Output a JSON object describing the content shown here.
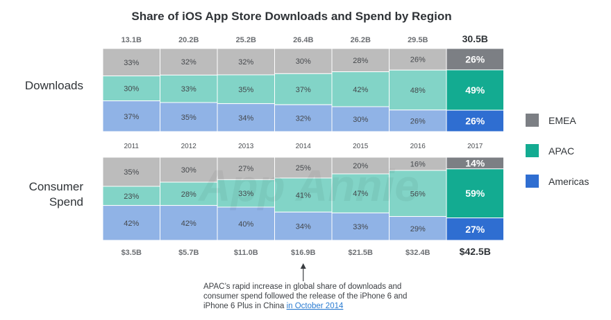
{
  "chart_data": {
    "type": "bar",
    "stacked": true,
    "normalized": true,
    "title": "Share of iOS App Store Downloads and Spend by Region",
    "categories": [
      "2011",
      "2012",
      "2013",
      "2014",
      "2015",
      "2016",
      "2017"
    ],
    "legend": {
      "placement": "right",
      "items": [
        {
          "name": "EMEA",
          "color": "#7c7f84"
        },
        {
          "name": "APAC",
          "color": "#13ab91"
        },
        {
          "name": "Americas",
          "color": "#2f6ed1"
        }
      ]
    },
    "panels": [
      {
        "name": "Downloads",
        "totals": [
          "13.1B",
          "20.2B",
          "25.2B",
          "26.4B",
          "26.2B",
          "29.5B",
          "30.5B"
        ],
        "series": [
          {
            "name": "EMEA",
            "values": [
              33,
              32,
              32,
              30,
              28,
              26,
              26
            ]
          },
          {
            "name": "APAC",
            "values": [
              30,
              33,
              35,
              37,
              42,
              48,
              49
            ]
          },
          {
            "name": "Americas",
            "values": [
              37,
              35,
              34,
              32,
              30,
              26,
              26
            ]
          }
        ]
      },
      {
        "name": "Consumer Spend",
        "totals": [
          "$3.5B",
          "$5.7B",
          "$11.0B",
          "$16.9B",
          "$21.5B",
          "$32.4B",
          "$42.5B"
        ],
        "series": [
          {
            "name": "EMEA",
            "values": [
              35,
              30,
              27,
              25,
              20,
              16,
              14
            ]
          },
          {
            "name": "APAC",
            "values": [
              23,
              28,
              33,
              41,
              47,
              56,
              59
            ]
          },
          {
            "name": "Americas",
            "values": [
              42,
              42,
              40,
              34,
              33,
              29,
              27
            ]
          }
        ]
      }
    ],
    "annotation": {
      "category": "2014",
      "lines": [
        "APAC’s rapid increase in global share of downloads and",
        "consumer spend followed the release of the iPhone 6 and",
        "iPhone 6 Plus in China "
      ],
      "link": "in October 2014"
    },
    "watermark": "App Annie"
  }
}
